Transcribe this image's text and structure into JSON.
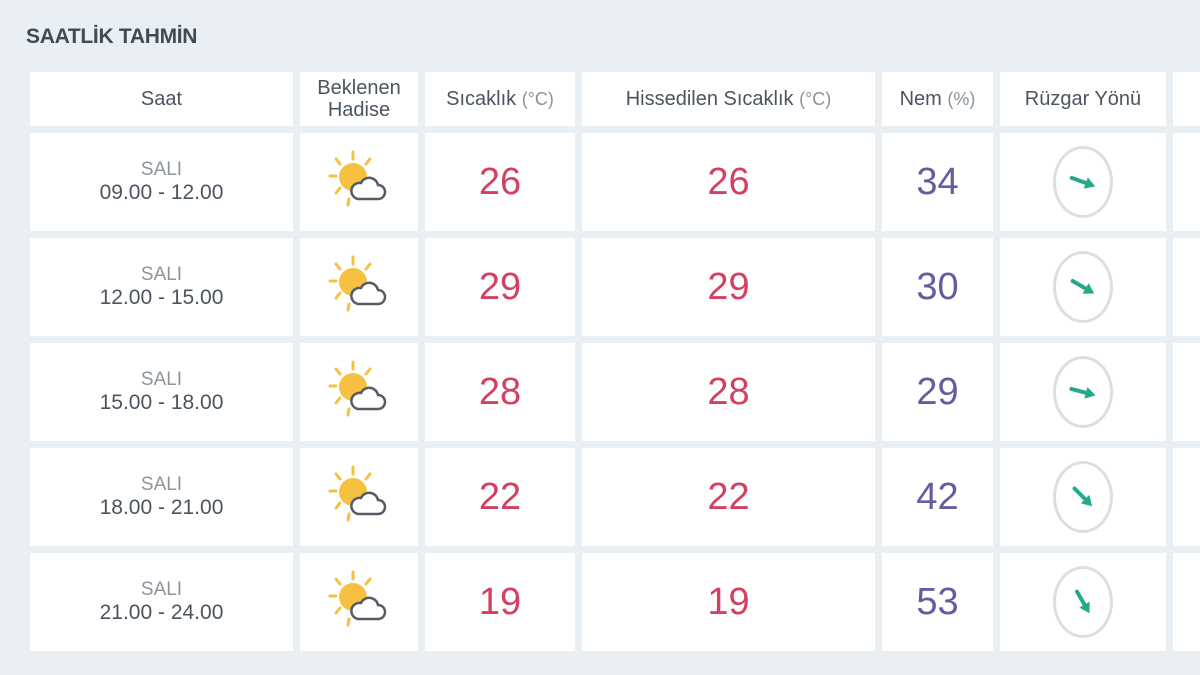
{
  "title": "SAATLİK TAHMİN",
  "headers": {
    "saat": "Saat",
    "hadise_1": "Beklenen",
    "hadise_2": "Hadise",
    "sicaklik": "Sıcaklık",
    "sicaklik_unit": "(°C)",
    "hissedilen": "Hissedilen Sıcaklık",
    "hissedilen_unit": "(°C)",
    "nem": "Nem",
    "nem_unit": "(%)",
    "ruzgar": "Rüzgar Yönü"
  },
  "colors": {
    "temperature": "#d4405f",
    "humidity": "#665c9e",
    "wind_arrow": "#26a98b",
    "sun": "#f6c040"
  },
  "rows": [
    {
      "day": "SALI",
      "time": "09.00 - 12.00",
      "icon": "partly-cloudy-icon",
      "temp": "26",
      "feels": "26",
      "humidity": "34",
      "wind_direction_deg": 110
    },
    {
      "day": "SALI",
      "time": "12.00 - 15.00",
      "icon": "partly-cloudy-icon",
      "temp": "29",
      "feels": "29",
      "humidity": "30",
      "wind_direction_deg": 120
    },
    {
      "day": "SALI",
      "time": "15.00 - 18.00",
      "icon": "partly-cloudy-icon",
      "temp": "28",
      "feels": "28",
      "humidity": "29",
      "wind_direction_deg": 105
    },
    {
      "day": "SALI",
      "time": "18.00 - 21.00",
      "icon": "partly-cloudy-icon",
      "temp": "22",
      "feels": "22",
      "humidity": "42",
      "wind_direction_deg": 135
    },
    {
      "day": "SALI",
      "time": "21.00 - 24.00",
      "icon": "partly-cloudy-icon",
      "temp": "19",
      "feels": "19",
      "humidity": "53",
      "wind_direction_deg": 150
    }
  ]
}
